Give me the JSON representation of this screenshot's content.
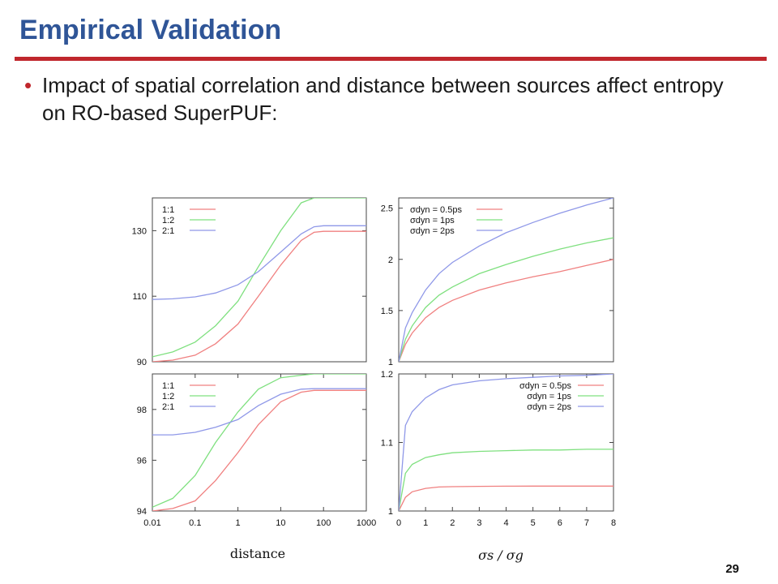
{
  "slide": {
    "title": "Empirical Validation",
    "bullet": "Impact of spatial correlation and distance between sources affect entropy on RO-based SuperPUF:",
    "bullet_glyph": "•",
    "page_number": "29"
  },
  "colors": {
    "title": "#2f5597",
    "rule": "#c0272d",
    "red": "#f08080",
    "green": "#7fe07f",
    "blue": "#8f98e8"
  },
  "xlabels": {
    "left": "distance",
    "right": "σs / σg"
  },
  "chart_data": [
    {
      "type": "line",
      "x_scale": "log",
      "xlim": [
        0.01,
        1000
      ],
      "ylim": [
        90,
        140
      ],
      "ytick_labels": [
        "90",
        "110",
        "130"
      ],
      "xtick_labels": [],
      "legend": [
        "1:1",
        "1:2",
        "2:1"
      ],
      "legend_position": "top-left",
      "series": [
        {
          "name": "1:1",
          "color": "red",
          "x": [
            0.01,
            0.03,
            0.1,
            0.3,
            1,
            3,
            10,
            30,
            60,
            100,
            300,
            1000
          ],
          "y": [
            90.0,
            90.5,
            92.0,
            95.5,
            101.5,
            110.0,
            119.5,
            127.0,
            129.5,
            129.8,
            129.8,
            129.8
          ]
        },
        {
          "name": "1:2",
          "color": "green",
          "x": [
            0.01,
            0.03,
            0.1,
            0.3,
            1,
            3,
            10,
            30,
            60,
            100,
            300,
            1000
          ],
          "y": [
            91.5,
            93.0,
            96.0,
            101.0,
            108.5,
            119.0,
            130.0,
            138.5,
            140.0,
            140.0,
            140.0,
            140.0
          ]
        },
        {
          "name": "2:1",
          "color": "blue",
          "x": [
            0.01,
            0.03,
            0.1,
            0.3,
            1,
            3,
            10,
            30,
            60,
            100,
            300,
            1000
          ],
          "y": [
            109.0,
            109.2,
            109.8,
            111.0,
            113.5,
            117.5,
            123.5,
            129.0,
            131.2,
            131.5,
            131.5,
            131.5
          ]
        }
      ]
    },
    {
      "type": "line",
      "xlim": [
        0,
        8
      ],
      "ylim": [
        1,
        2.6
      ],
      "ytick_labels": [
        "1",
        "1.5",
        "2",
        "2.5"
      ],
      "xtick_labels": [],
      "legend": [
        "σdyn = 0.5ps",
        "σdyn = 1ps",
        "σdyn = 2ps"
      ],
      "legend_position": "top-left",
      "series": [
        {
          "name": "σdyn = 0.5ps",
          "color": "red",
          "x": [
            0,
            0.25,
            0.5,
            1,
            1.5,
            2,
            3,
            4,
            5,
            6,
            7,
            8
          ],
          "y": [
            1.0,
            1.17,
            1.28,
            1.43,
            1.53,
            1.6,
            1.7,
            1.77,
            1.83,
            1.88,
            1.94,
            2.0
          ]
        },
        {
          "name": "σdyn = 1ps",
          "color": "green",
          "x": [
            0,
            0.25,
            0.5,
            1,
            1.5,
            2,
            3,
            4,
            5,
            6,
            7,
            8
          ],
          "y": [
            1.0,
            1.22,
            1.35,
            1.53,
            1.65,
            1.73,
            1.86,
            1.95,
            2.03,
            2.1,
            2.16,
            2.21
          ]
        },
        {
          "name": "σdyn = 2ps",
          "color": "blue",
          "x": [
            0,
            0.25,
            0.5,
            1,
            1.5,
            2,
            3,
            4,
            5,
            6,
            7,
            8
          ],
          "y": [
            1.0,
            1.33,
            1.48,
            1.7,
            1.86,
            1.97,
            2.13,
            2.26,
            2.36,
            2.45,
            2.53,
            2.6
          ]
        }
      ]
    },
    {
      "type": "line",
      "x_scale": "log",
      "xlim": [
        0.01,
        1000
      ],
      "ylim": [
        94,
        99.4
      ],
      "ytick_labels": [
        "94",
        "96",
        "98"
      ],
      "xtick_labels": [
        "0.01",
        "0.1",
        "1",
        "10",
        "100",
        "1000"
      ],
      "legend": [
        "1:1",
        "1:2",
        "2:1"
      ],
      "legend_position": "top-left",
      "series": [
        {
          "name": "1:1",
          "color": "red",
          "x": [
            0.01,
            0.03,
            0.1,
            0.3,
            1,
            3,
            10,
            30,
            60,
            100,
            300,
            1000
          ],
          "y": [
            94.0,
            94.1,
            94.4,
            95.2,
            96.3,
            97.4,
            98.3,
            98.68,
            98.75,
            98.75,
            98.75,
            98.75
          ]
        },
        {
          "name": "1:2",
          "color": "green",
          "x": [
            0.01,
            0.03,
            0.1,
            0.3,
            1,
            3,
            10,
            30,
            60,
            100,
            300,
            1000
          ],
          "y": [
            94.15,
            94.5,
            95.4,
            96.7,
            97.9,
            98.8,
            99.25,
            99.35,
            99.4,
            99.4,
            99.4,
            99.4
          ]
        },
        {
          "name": "2:1",
          "color": "blue",
          "x": [
            0.01,
            0.03,
            0.1,
            0.3,
            1,
            3,
            10,
            30,
            60,
            100,
            300,
            1000
          ],
          "y": [
            97.0,
            97.0,
            97.1,
            97.3,
            97.6,
            98.15,
            98.6,
            98.8,
            98.82,
            98.82,
            98.82,
            98.82
          ]
        }
      ]
    },
    {
      "type": "line",
      "xlim": [
        0,
        8
      ],
      "ylim": [
        1,
        1.2
      ],
      "ytick_labels": [
        "1",
        "1.1",
        "1.2"
      ],
      "xtick_labels": [
        "0",
        "1",
        "2",
        "3",
        "4",
        "5",
        "6",
        "7",
        "8"
      ],
      "legend": [
        "σdyn = 0.5ps",
        "σdyn = 1ps",
        "σdyn = 2ps"
      ],
      "legend_position": "top-right",
      "series": [
        {
          "name": "σdyn = 0.5ps",
          "color": "red",
          "x": [
            0,
            0.25,
            0.5,
            1,
            1.5,
            2,
            3,
            4,
            5,
            6,
            7,
            8
          ],
          "y": [
            1.0,
            1.02,
            1.028,
            1.033,
            1.035,
            1.0355,
            1.036,
            1.0362,
            1.0363,
            1.0363,
            1.0363,
            1.0363
          ]
        },
        {
          "name": "σdyn = 1ps",
          "color": "green",
          "x": [
            0,
            0.25,
            0.5,
            1,
            1.5,
            2,
            3,
            4,
            5,
            6,
            7,
            8
          ],
          "y": [
            1.0,
            1.055,
            1.068,
            1.078,
            1.082,
            1.085,
            1.087,
            1.088,
            1.089,
            1.089,
            1.09,
            1.09
          ]
        },
        {
          "name": "σdyn = 2ps",
          "color": "blue",
          "x": [
            0,
            0.25,
            0.5,
            1,
            1.5,
            2,
            3,
            4,
            5,
            6,
            7,
            8
          ],
          "y": [
            1.0,
            1.125,
            1.145,
            1.165,
            1.177,
            1.184,
            1.19,
            1.193,
            1.195,
            1.197,
            1.198,
            1.2
          ]
        }
      ]
    }
  ]
}
